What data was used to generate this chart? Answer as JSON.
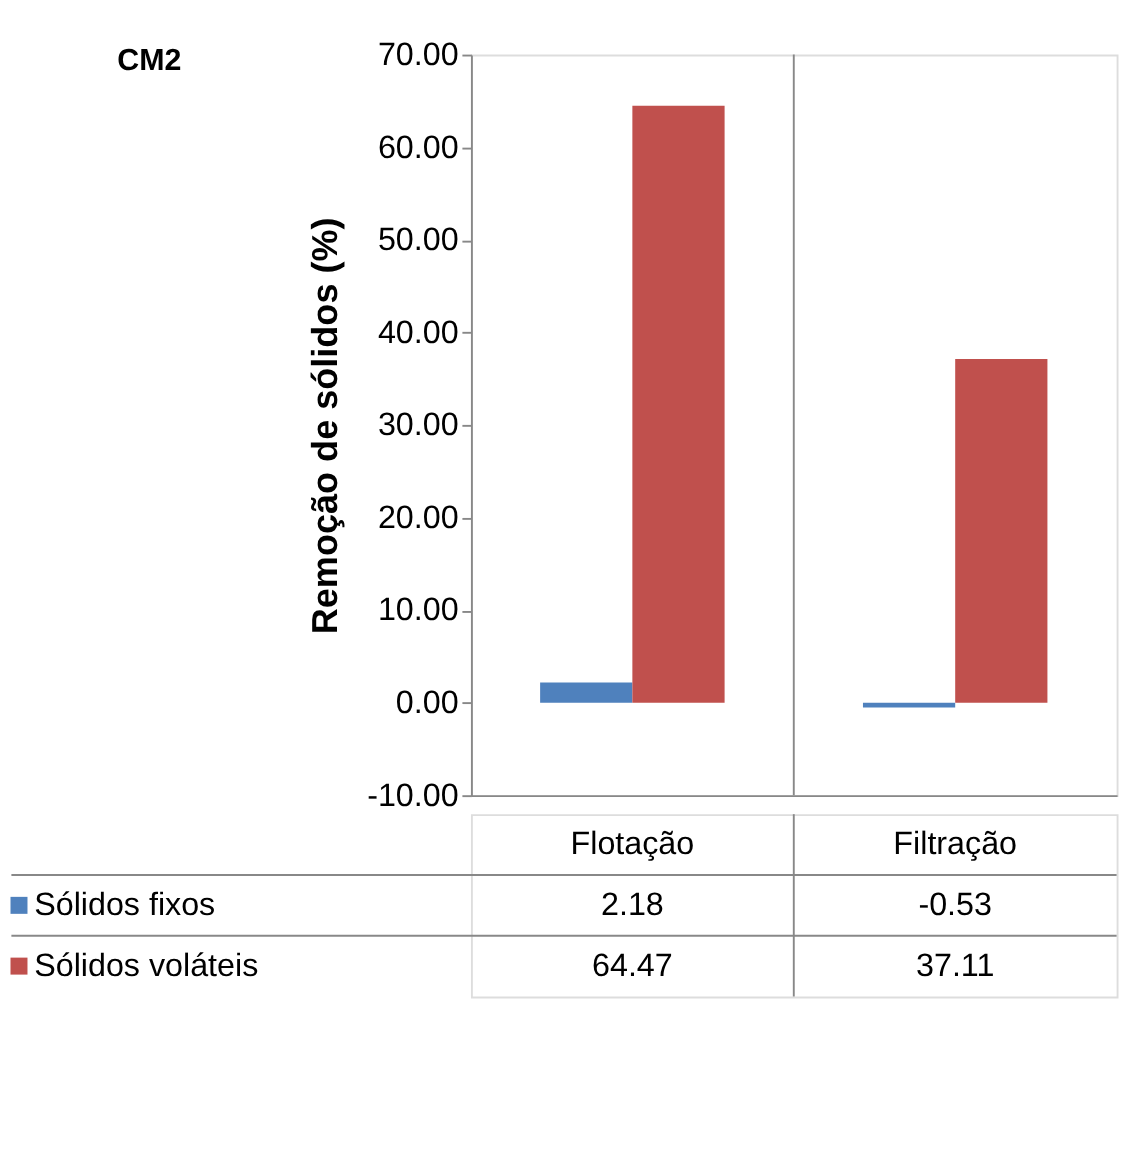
{
  "chart_data": {
    "type": "bar",
    "title": "CM2",
    "ylabel": "Remoção de sólidos (%)",
    "categories": [
      "Flotação",
      "Filtração"
    ],
    "series": [
      {
        "name": "Sólidos fixos",
        "color": "#4f81bd",
        "values": [
          2.18,
          -0.53
        ]
      },
      {
        "name": "Sólidos voláteis",
        "color": "#c0504d",
        "values": [
          64.47,
          37.11
        ]
      }
    ],
    "ylim": [
      -10,
      70
    ],
    "yticks": [
      {
        "value": -10,
        "label": "-10.00"
      },
      {
        "value": 0,
        "label": "0.00"
      },
      {
        "value": 10,
        "label": "10.00"
      },
      {
        "value": 20,
        "label": "20.00"
      },
      {
        "value": 30,
        "label": "30.00"
      },
      {
        "value": 40,
        "label": "40.00"
      },
      {
        "value": 50,
        "label": "50.00"
      },
      {
        "value": 60,
        "label": "60.00"
      },
      {
        "value": 70,
        "label": "70.00"
      }
    ],
    "grid": false,
    "data_labels": true,
    "legend": "bottom"
  }
}
